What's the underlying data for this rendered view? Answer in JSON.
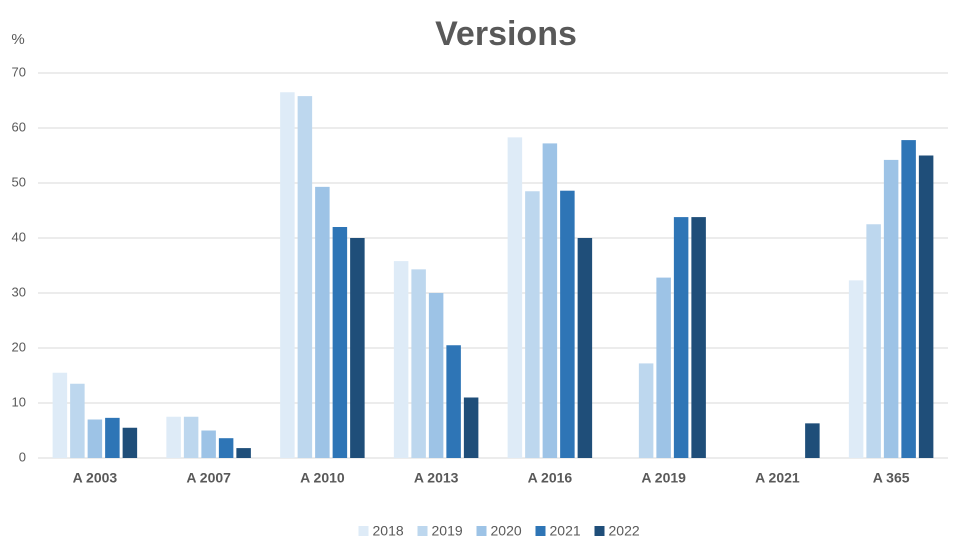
{
  "chart_data": {
    "type": "bar",
    "title": "Versions",
    "y_label": "%",
    "categories": [
      "A 2003",
      "A 2007",
      "A 2010",
      "A 2013",
      "A 2016",
      "A 2019",
      "A 2021",
      "A 365"
    ],
    "series": [
      {
        "name": "2018",
        "color": "#deebf7",
        "values": [
          15.5,
          7.5,
          66.5,
          35.8,
          58.3,
          null,
          null,
          32.3
        ]
      },
      {
        "name": "2019",
        "color": "#bdd7ee",
        "values": [
          13.5,
          7.5,
          65.8,
          34.3,
          48.5,
          17.2,
          null,
          42.5
        ]
      },
      {
        "name": "2020",
        "color": "#9dc3e6",
        "values": [
          7,
          5,
          49.3,
          30,
          57.2,
          32.8,
          null,
          54.2
        ]
      },
      {
        "name": "2021",
        "color": "#2e75b6",
        "values": [
          7.3,
          3.6,
          42,
          20.5,
          48.6,
          43.8,
          null,
          57.8
        ]
      },
      {
        "name": "2022",
        "color": "#1f4e79",
        "values": [
          5.5,
          1.8,
          40,
          11,
          40,
          43.8,
          6.3,
          55
        ]
      }
    ],
    "ylim": [
      0,
      70
    ],
    "yticks": [
      0,
      10,
      20,
      30,
      40,
      50,
      60,
      70
    ],
    "grid": true,
    "legend": "bottom"
  }
}
